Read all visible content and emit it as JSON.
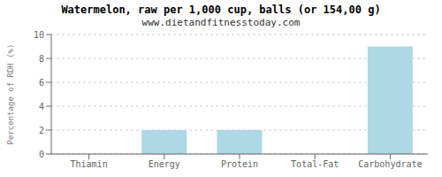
{
  "chart_data": {
    "type": "bar",
    "title": "Watermelon, raw per 1,000 cup, balls (or 154,00 g)",
    "subtitle": "www.dietandfitnesstoday.com",
    "categories": [
      "Thiamin",
      "Energy",
      "Protein",
      "Total-Fat",
      "Carbohydrate"
    ],
    "values": [
      0,
      2,
      2,
      0,
      9
    ],
    "color": "#add8e6",
    "ylabel": "Percentage of RDH (%)",
    "ylim": [
      0,
      10
    ],
    "yticks": [
      0,
      2,
      4,
      6,
      8,
      10
    ],
    "grid": true
  }
}
